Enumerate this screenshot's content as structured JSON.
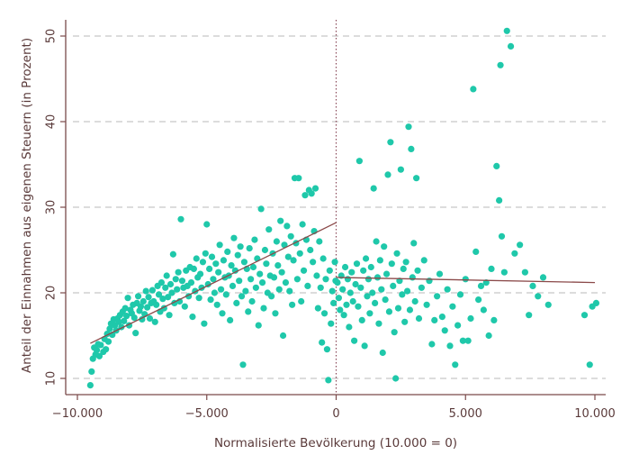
{
  "chart_data": {
    "type": "scatter",
    "xlabel": "Normalisierte Bevölkerung (10.000 = 0)",
    "ylabel": "Anteil der Einnahmen aus eigenen Steuern (in Prozent)",
    "xlim": [
      -10000,
      10000
    ],
    "ylim": [
      9,
      52
    ],
    "x_ticks": [
      -10000,
      -5000,
      0,
      5000,
      10000
    ],
    "x_tick_labels": [
      "−10.000",
      "−5.000",
      "0",
      "5.000",
      "10.000"
    ],
    "y_ticks": [
      10,
      20,
      30,
      40,
      50
    ],
    "y_tick_labels": [
      "10",
      "20",
      "30",
      "40",
      "50"
    ],
    "grid": "horizontal dashed",
    "cutoff_x": 0,
    "colors": {
      "points": "#1fc8aa",
      "fit": "#8b4a4a",
      "axis": "#7a4a4a",
      "grid": "#c8c8c8"
    },
    "fit_lines": [
      {
        "x": [
          -9500,
          0
        ],
        "y": [
          14.1,
          28.2
        ]
      },
      {
        "x": [
          0,
          10000
        ],
        "y": [
          21.8,
          21.2
        ]
      }
    ],
    "points": [
      [
        -9500,
        9.2
      ],
      [
        -9450,
        10.8
      ],
      [
        -9400,
        12.3
      ],
      [
        -9350,
        13.6
      ],
      [
        -9300,
        12.8
      ],
      [
        -9250,
        13.3
      ],
      [
        -9200,
        14.0
      ],
      [
        -9150,
        12.6
      ],
      [
        -9100,
        13.9
      ],
      [
        -9000,
        13.1
      ],
      [
        -8950,
        14.6
      ],
      [
        -8900,
        13.4
      ],
      [
        -8850,
        15.2
      ],
      [
        -8800,
        14.3
      ],
      [
        -8750,
        15.8
      ],
      [
        -8700,
        16.4
      ],
      [
        -8650,
        15.1
      ],
      [
        -8600,
        16.9
      ],
      [
        -8550,
        16.2
      ],
      [
        -8500,
        15.6
      ],
      [
        -8450,
        17.0
      ],
      [
        -8400,
        16.6
      ],
      [
        -8350,
        17.4
      ],
      [
        -8300,
        16.0
      ],
      [
        -8250,
        17.8
      ],
      [
        -8200,
        16.7
      ],
      [
        -8150,
        18.2
      ],
      [
        -8100,
        17.3
      ],
      [
        -8050,
        19.4
      ],
      [
        -8000,
        16.2
      ],
      [
        -7950,
        18.0
      ],
      [
        -7900,
        17.6
      ],
      [
        -7850,
        18.6
      ],
      [
        -7800,
        17.1
      ],
      [
        -7750,
        15.3
      ],
      [
        -7700,
        18.8
      ],
      [
        -7650,
        19.6
      ],
      [
        -7600,
        17.9
      ],
      [
        -7550,
        18.4
      ],
      [
        -7500,
        16.9
      ],
      [
        -7450,
        19.0
      ],
      [
        -7400,
        17.5
      ],
      [
        -7350,
        20.2
      ],
      [
        -7300,
        18.3
      ],
      [
        -7250,
        19.5
      ],
      [
        -7200,
        17.0
      ],
      [
        -7150,
        18.8
      ],
      [
        -7100,
        20.3
      ],
      [
        -7050,
        19.0
      ],
      [
        -7000,
        16.6
      ],
      [
        -6950,
        18.6
      ],
      [
        -6900,
        20.8
      ],
      [
        -6850,
        19.8
      ],
      [
        -6800,
        17.8
      ],
      [
        -6750,
        21.2
      ],
      [
        -6700,
        19.3
      ],
      [
        -6650,
        18.2
      ],
      [
        -6600,
        20.6
      ],
      [
        -6550,
        22.0
      ],
      [
        -6500,
        19.5
      ],
      [
        -6450,
        17.4
      ],
      [
        -6400,
        21.0
      ],
      [
        -6350,
        20.0
      ],
      [
        -6300,
        24.5
      ],
      [
        -6250,
        18.8
      ],
      [
        -6200,
        21.6
      ],
      [
        -6150,
        20.4
      ],
      [
        -6100,
        22.4
      ],
      [
        -6050,
        19.0
      ],
      [
        -6000,
        28.6
      ],
      [
        -5950,
        21.4
      ],
      [
        -5900,
        20.6
      ],
      [
        -5850,
        18.4
      ],
      [
        -5800,
        22.6
      ],
      [
        -5750,
        20.8
      ],
      [
        -5700,
        19.6
      ],
      [
        -5650,
        23.0
      ],
      [
        -5600,
        21.2
      ],
      [
        -5550,
        17.2
      ],
      [
        -5500,
        22.8
      ],
      [
        -5450,
        20.2
      ],
      [
        -5400,
        24.0
      ],
      [
        -5350,
        21.8
      ],
      [
        -5300,
        19.4
      ],
      [
        -5250,
        22.2
      ],
      [
        -5200,
        20.6
      ],
      [
        -5150,
        23.6
      ],
      [
        -5100,
        16.4
      ],
      [
        -5050,
        24.6
      ],
      [
        -5000,
        28.0
      ],
      [
        -4950,
        21.0
      ],
      [
        -4900,
        22.8
      ],
      [
        -4850,
        19.2
      ],
      [
        -4800,
        24.2
      ],
      [
        -4750,
        21.6
      ],
      [
        -4700,
        20.0
      ],
      [
        -4650,
        23.4
      ],
      [
        -4600,
        18.6
      ],
      [
        -4550,
        22.4
      ],
      [
        -4500,
        25.6
      ],
      [
        -4450,
        20.4
      ],
      [
        -4400,
        17.6
      ],
      [
        -4350,
        23.8
      ],
      [
        -4300,
        21.8
      ],
      [
        -4250,
        19.8
      ],
      [
        -4200,
        24.8
      ],
      [
        -4150,
        22.0
      ],
      [
        -4100,
        16.8
      ],
      [
        -4050,
        23.2
      ],
      [
        -4000,
        20.8
      ],
      [
        -3950,
        26.4
      ],
      [
        -3900,
        22.6
      ],
      [
        -3850,
        18.8
      ],
      [
        -3800,
        24.4
      ],
      [
        -3750,
        21.4
      ],
      [
        -3700,
        25.4
      ],
      [
        -3650,
        19.6
      ],
      [
        -3600,
        11.6
      ],
      [
        -3550,
        23.6
      ],
      [
        -3500,
        20.2
      ],
      [
        -3450,
        22.8
      ],
      [
        -3400,
        17.8
      ],
      [
        -3350,
        25.2
      ],
      [
        -3300,
        21.6
      ],
      [
        -3250,
        19.0
      ],
      [
        -3200,
        23.0
      ],
      [
        -3150,
        26.2
      ],
      [
        -3100,
        20.6
      ],
      [
        -3050,
        24.0
      ],
      [
        -3000,
        16.2
      ],
      [
        -2950,
        22.2
      ],
      [
        -2900,
        29.8
      ],
      [
        -2850,
        21.2
      ],
      [
        -2800,
        18.2
      ],
      [
        -2750,
        25.0
      ],
      [
        -2700,
        23.4
      ],
      [
        -2650,
        20.0
      ],
      [
        -2600,
        27.4
      ],
      [
        -2550,
        22.0
      ],
      [
        -2500,
        19.6
      ],
      [
        -2450,
        24.6
      ],
      [
        -2400,
        21.8
      ],
      [
        -2350,
        17.6
      ],
      [
        -2300,
        26.0
      ],
      [
        -2250,
        23.2
      ],
      [
        -2200,
        20.4
      ],
      [
        -2150,
        28.4
      ],
      [
        -2100,
        22.4
      ],
      [
        -2050,
        15.0
      ],
      [
        -2000,
        25.6
      ],
      [
        -1950,
        21.2
      ],
      [
        -1900,
        27.8
      ],
      [
        -1850,
        24.2
      ],
      [
        -1800,
        20.2
      ],
      [
        -1750,
        26.6
      ],
      [
        -1700,
        18.6
      ],
      [
        -1650,
        23.8
      ],
      [
        -1600,
        33.4
      ],
      [
        -1550,
        25.8
      ],
      [
        -1500,
        21.6
      ],
      [
        -1450,
        33.4
      ],
      [
        -1400,
        24.6
      ],
      [
        -1350,
        19.0
      ],
      [
        -1300,
        28.0
      ],
      [
        -1250,
        22.6
      ],
      [
        -1200,
        31.4
      ],
      [
        -1150,
        26.2
      ],
      [
        -1100,
        20.8
      ],
      [
        -1050,
        32.0
      ],
      [
        -1000,
        25.0
      ],
      [
        -950,
        31.6
      ],
      [
        -900,
        23.6
      ],
      [
        -850,
        27.2
      ],
      [
        -800,
        32.2
      ],
      [
        -750,
        22.0
      ],
      [
        -700,
        18.2
      ],
      [
        -650,
        26.0
      ],
      [
        -600,
        20.6
      ],
      [
        -550,
        14.2
      ],
      [
        -500,
        24.0
      ],
      [
        -450,
        17.6
      ],
      [
        -400,
        21.6
      ],
      [
        -350,
        13.4
      ],
      [
        -300,
        9.8
      ],
      [
        -250,
        22.6
      ],
      [
        -200,
        16.4
      ],
      [
        -150,
        20.2
      ],
      [
        -100,
        18.8
      ],
      [
        -50,
        23.6
      ],
      [
        -20,
        21.4
      ],
      [
        50,
        21.2
      ],
      [
        100,
        19.4
      ],
      [
        150,
        18.0
      ],
      [
        200,
        22.0
      ],
      [
        250,
        20.4
      ],
      [
        300,
        17.4
      ],
      [
        350,
        23.0
      ],
      [
        400,
        18.6
      ],
      [
        450,
        21.6
      ],
      [
        500,
        16.0
      ],
      [
        550,
        20.0
      ],
      [
        600,
        22.4
      ],
      [
        650,
        19.0
      ],
      [
        700,
        14.4
      ],
      [
        750,
        21.0
      ],
      [
        800,
        23.4
      ],
      [
        850,
        18.4
      ],
      [
        900,
        35.4
      ],
      [
        950,
        20.6
      ],
      [
        1000,
        16.8
      ],
      [
        1050,
        22.6
      ],
      [
        1100,
        13.8
      ],
      [
        1150,
        24.0
      ],
      [
        1200,
        19.6
      ],
      [
        1250,
        21.6
      ],
      [
        1300,
        17.6
      ],
      [
        1350,
        23.0
      ],
      [
        1400,
        20.0
      ],
      [
        1450,
        32.2
      ],
      [
        1500,
        18.8
      ],
      [
        1550,
        26.0
      ],
      [
        1600,
        21.8
      ],
      [
        1650,
        16.4
      ],
      [
        1700,
        23.8
      ],
      [
        1750,
        20.4
      ],
      [
        1800,
        13.0
      ],
      [
        1850,
        25.4
      ],
      [
        1900,
        19.2
      ],
      [
        1950,
        22.2
      ],
      [
        2000,
        33.8
      ],
      [
        2050,
        17.8
      ],
      [
        2100,
        37.6
      ],
      [
        2150,
        23.4
      ],
      [
        2200,
        20.8
      ],
      [
        2250,
        15.4
      ],
      [
        2300,
        10.0
      ],
      [
        2350,
        24.6
      ],
      [
        2400,
        18.2
      ],
      [
        2450,
        21.4
      ],
      [
        2500,
        34.4
      ],
      [
        2550,
        19.8
      ],
      [
        2600,
        22.8
      ],
      [
        2650,
        16.6
      ],
      [
        2700,
        23.6
      ],
      [
        2750,
        20.2
      ],
      [
        2800,
        39.4
      ],
      [
        2850,
        18.0
      ],
      [
        2900,
        36.8
      ],
      [
        2950,
        21.8
      ],
      [
        3000,
        25.8
      ],
      [
        3050,
        19.0
      ],
      [
        3100,
        33.4
      ],
      [
        3150,
        22.6
      ],
      [
        3200,
        17.0
      ],
      [
        3300,
        20.6
      ],
      [
        3400,
        23.8
      ],
      [
        3500,
        18.6
      ],
      [
        3600,
        21.4
      ],
      [
        3700,
        14.0
      ],
      [
        3800,
        16.8
      ],
      [
        3900,
        19.6
      ],
      [
        4000,
        22.2
      ],
      [
        4100,
        17.2
      ],
      [
        4200,
        15.6
      ],
      [
        4300,
        20.4
      ],
      [
        4400,
        13.8
      ],
      [
        4500,
        18.4
      ],
      [
        4600,
        11.6
      ],
      [
        4700,
        16.2
      ],
      [
        4800,
        19.8
      ],
      [
        4900,
        14.4
      ],
      [
        5000,
        21.6
      ],
      [
        5100,
        14.4
      ],
      [
        5200,
        17.0
      ],
      [
        5300,
        43.8
      ],
      [
        5400,
        24.8
      ],
      [
        5500,
        19.2
      ],
      [
        5600,
        20.8
      ],
      [
        5700,
        18.0
      ],
      [
        5800,
        21.2
      ],
      [
        5900,
        15.0
      ],
      [
        6000,
        22.8
      ],
      [
        6100,
        16.8
      ],
      [
        6200,
        34.8
      ],
      [
        6300,
        30.8
      ],
      [
        6350,
        46.6
      ],
      [
        6400,
        26.6
      ],
      [
        6500,
        22.4
      ],
      [
        6600,
        50.6
      ],
      [
        6750,
        48.8
      ],
      [
        6900,
        24.6
      ],
      [
        7100,
        25.6
      ],
      [
        7300,
        22.4
      ],
      [
        7450,
        17.4
      ],
      [
        7600,
        20.8
      ],
      [
        7800,
        19.6
      ],
      [
        8000,
        21.8
      ],
      [
        8200,
        18.6
      ],
      [
        9600,
        17.4
      ],
      [
        9800,
        11.6
      ],
      [
        9900,
        18.4
      ],
      [
        10050,
        18.8
      ]
    ]
  }
}
